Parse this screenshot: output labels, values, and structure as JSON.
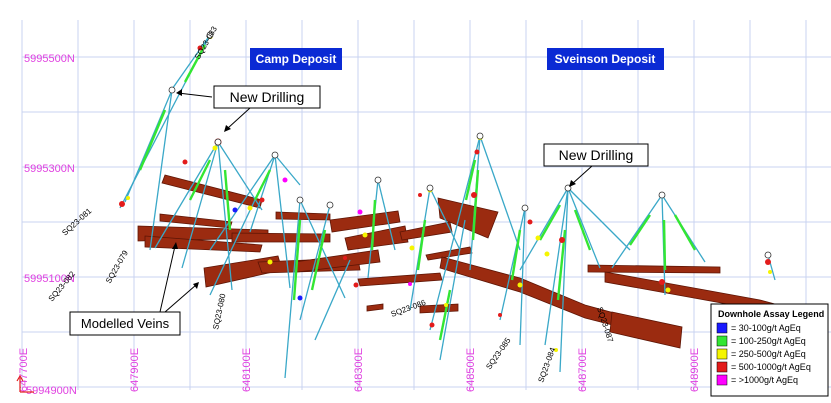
{
  "northings": [
    "5995500N",
    "5995300N",
    "5995100N",
    "5994900N"
  ],
  "eastings": [
    "647700E",
    "647900E",
    "648100E",
    "648300E",
    "648500E",
    "648700E",
    "648900E"
  ],
  "deposits": [
    {
      "label": "Camp Deposit",
      "color": "#0b2ad4"
    },
    {
      "label": "Sveinson Deposit",
      "color": "#0b2ad4"
    }
  ],
  "callouts": [
    "New Drilling",
    "New Drilling",
    "Modelled Veins"
  ],
  "hole_labels": [
    "SQ23-083",
    "SQ23-081",
    "SQ23-082",
    "SQ23-079",
    "SQ23-080",
    "SQ23-086",
    "SQ23-085",
    "SQ23-084",
    "SQ23-087"
  ],
  "legend": {
    "title": "Downhole Assay Legend",
    "items": [
      {
        "label": "= 30-100g/t AgEq",
        "color": "#1a1aff"
      },
      {
        "label": "= 100-250g/t AgEq",
        "color": "#33e633"
      },
      {
        "label": "= 250-500g/t AgEq",
        "color": "#f5f500"
      },
      {
        "label": "= 500-1000g/t AgEq",
        "color": "#e31b1b"
      },
      {
        "label": "= >1000g/t AgEq",
        "color": "#ff00ff"
      }
    ]
  },
  "colors": {
    "grid": "#c9d3f0",
    "coordinate_text": "#e040e0",
    "vein": "#9b2b10",
    "vein_edge": "#5e1505",
    "drill_trace": "#3aa8c8"
  }
}
